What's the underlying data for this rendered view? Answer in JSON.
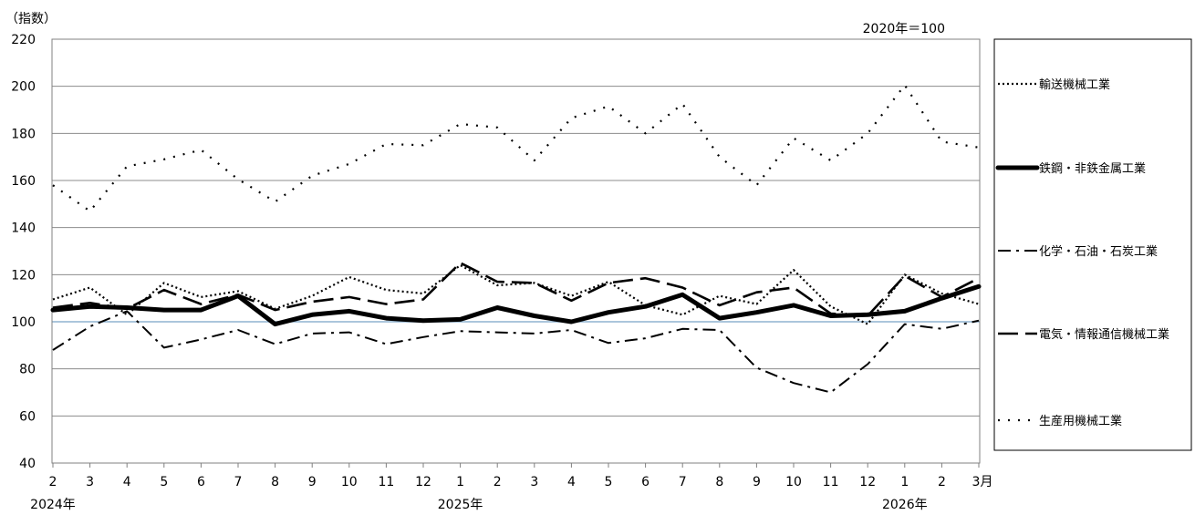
{
  "chart_data": {
    "type": "line",
    "unit_label": "（指数）",
    "base_note": "2020年＝100",
    "ylim": [
      40,
      220
    ],
    "yticks": [
      40,
      60,
      80,
      100,
      120,
      140,
      160,
      180,
      200,
      220
    ],
    "x_ticks": [
      "2",
      "3",
      "4",
      "5",
      "6",
      "7",
      "8",
      "9",
      "10",
      "11",
      "12",
      "1",
      "2",
      "3",
      "4",
      "5",
      "6",
      "7",
      "8",
      "9",
      "10",
      "11",
      "12",
      "1",
      "2",
      "3月"
    ],
    "year_labels": [
      {
        "label": "2024年",
        "index": 0
      },
      {
        "label": "2025年",
        "index": 11
      },
      {
        "label": "2026年",
        "index": 23
      }
    ],
    "reference_line": 100,
    "grid": true,
    "legend_position": "right",
    "series": [
      {
        "name": "輸送機械工業",
        "style": "dotted",
        "values": [
          109.5,
          114.5,
          103,
          116.5,
          110.5,
          113,
          105.5,
          111,
          119,
          113.5,
          112,
          124,
          115.5,
          116.5,
          111,
          117,
          107,
          103,
          111,
          107.5,
          122,
          106.5,
          99,
          120,
          112,
          107.5
        ]
      },
      {
        "name": "鉄鋼・非鉄金属工業",
        "style": "thick",
        "values": [
          105,
          106.5,
          106,
          105,
          105,
          111,
          99,
          103,
          104.5,
          101.5,
          100.5,
          101,
          106,
          102.5,
          100,
          104,
          106.5,
          111.5,
          101.5,
          104,
          107,
          102.5,
          103,
          104.5,
          110,
          115
        ]
      },
      {
        "name": "化学・石油・石炭工業",
        "style": "dashdot",
        "values": [
          88,
          98,
          104.5,
          89,
          92.5,
          96.5,
          90.5,
          95,
          95.5,
          90.5,
          93.5,
          96,
          95.5,
          95,
          96.5,
          91,
          93,
          97,
          96.5,
          80.5,
          74,
          70,
          82,
          99,
          97,
          100.5
        ]
      },
      {
        "name": "電気・情報通信機械工業",
        "style": "longdash",
        "values": [
          106,
          108,
          105.5,
          113.5,
          107.5,
          111.5,
          105,
          108.5,
          110.5,
          107.5,
          109.5,
          125,
          117,
          116.5,
          109,
          116.5,
          118.5,
          114.5,
          107,
          112.5,
          114.5,
          103.5,
          102.5,
          119.5,
          110.5,
          118.5
        ]
      },
      {
        "name": "生産用機械工業",
        "style": "sparsedot",
        "values": [
          158,
          147,
          166,
          169,
          173,
          160.5,
          151,
          162,
          167,
          175.5,
          175,
          184,
          182.5,
          168.5,
          186.5,
          191.5,
          180,
          192.5,
          170,
          158,
          178,
          168.5,
          180,
          200.5,
          176.5,
          174
        ]
      }
    ]
  }
}
